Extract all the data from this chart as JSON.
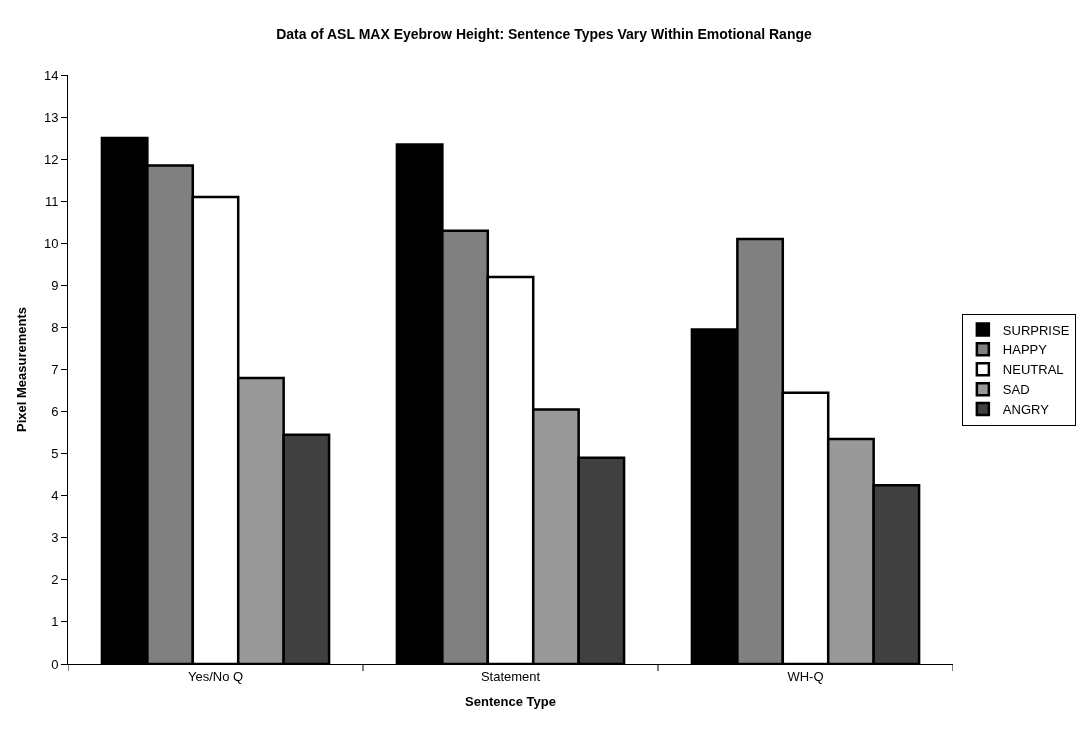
{
  "chart_data": {
    "type": "bar",
    "title": "Data of ASL MAX Eyebrow Height: Sentence Types Vary Within Emotional Range",
    "xlabel": "Sentence Type",
    "ylabel": "Pixel Measurements",
    "categories": [
      "Yes/No Q",
      "Statement",
      "WH-Q"
    ],
    "series": [
      {
        "name": "SURPRISE",
        "color": "#000000",
        "values": [
          12.5,
          12.35,
          7.95
        ]
      },
      {
        "name": "HAPPY",
        "color": "#808080",
        "values": [
          11.85,
          10.3,
          10.1
        ]
      },
      {
        "name": "NEUTRAL",
        "color": "#ffffff",
        "values": [
          11.1,
          9.2,
          6.45
        ]
      },
      {
        "name": "SAD",
        "color": "#999999",
        "values": [
          6.8,
          6.05,
          5.35
        ]
      },
      {
        "name": "ANGRY",
        "color": "#404040",
        "values": [
          5.45,
          4.9,
          4.25
        ]
      }
    ],
    "ylim": [
      0,
      14
    ],
    "yticks": [
      0,
      1,
      2,
      3,
      4,
      5,
      6,
      7,
      8,
      9,
      10,
      11,
      12,
      13,
      14
    ],
    "grid": false,
    "legend": "right"
  }
}
